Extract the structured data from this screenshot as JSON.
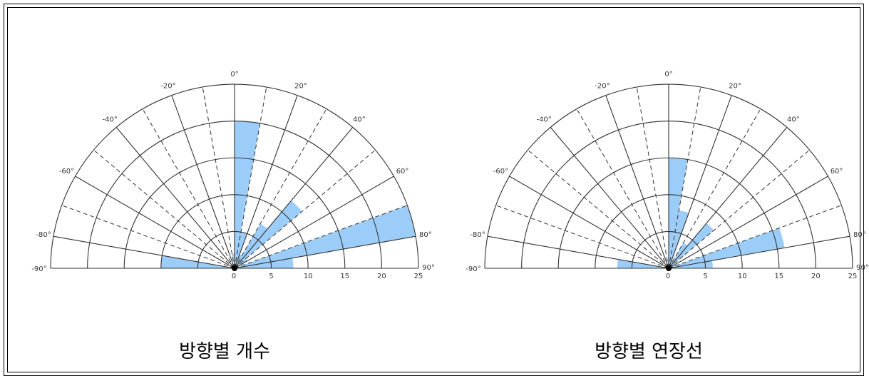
{
  "chart_data": [
    {
      "type": "polar-bar",
      "title": "방향별 개수",
      "bin_width_deg": 10,
      "angle_range": [
        -90,
        90
      ],
      "radial_range": [
        0,
        25
      ],
      "radial_ticks": [
        "0",
        "5",
        "10",
        "15",
        "20",
        "25"
      ],
      "angle_ticks": [
        "-90°",
        "-80°",
        "-60°",
        "-40°",
        "-20°",
        "0°",
        "20°",
        "40°",
        "60°",
        "80°",
        "90°"
      ],
      "bins_start_deg": [
        -90,
        -80,
        -70,
        -60,
        -50,
        -40,
        -30,
        -20,
        -10,
        0,
        10,
        20,
        30,
        40,
        50,
        60,
        70,
        80
      ],
      "values": [
        10,
        0,
        0,
        0,
        0,
        0,
        0,
        0,
        2,
        20,
        5,
        2,
        7,
        12,
        2,
        0,
        25,
        8
      ],
      "bar_color": "#9ccdf8"
    },
    {
      "type": "polar-bar",
      "title": "방향별 연장선",
      "bin_width_deg": 10,
      "angle_range": [
        -90,
        90
      ],
      "radial_range": [
        0,
        25
      ],
      "radial_ticks": [
        "0",
        "5",
        "10",
        "15",
        "20",
        "25"
      ],
      "angle_ticks": [
        "-90°",
        "-80°",
        "-60°",
        "-40°",
        "-20°",
        "0°",
        "20°",
        "40°",
        "60°",
        "80°",
        "90°"
      ],
      "bins_start_deg": [
        -90,
        -80,
        -70,
        -60,
        -50,
        -40,
        -30,
        -20,
        -10,
        0,
        10,
        20,
        30,
        40,
        50,
        60,
        70,
        80
      ],
      "values": [
        7,
        0,
        0,
        0,
        0,
        0,
        0,
        0,
        1,
        15,
        8,
        1,
        4,
        8,
        1,
        0,
        16,
        6
      ],
      "bar_color": "#9ccdf8"
    }
  ]
}
